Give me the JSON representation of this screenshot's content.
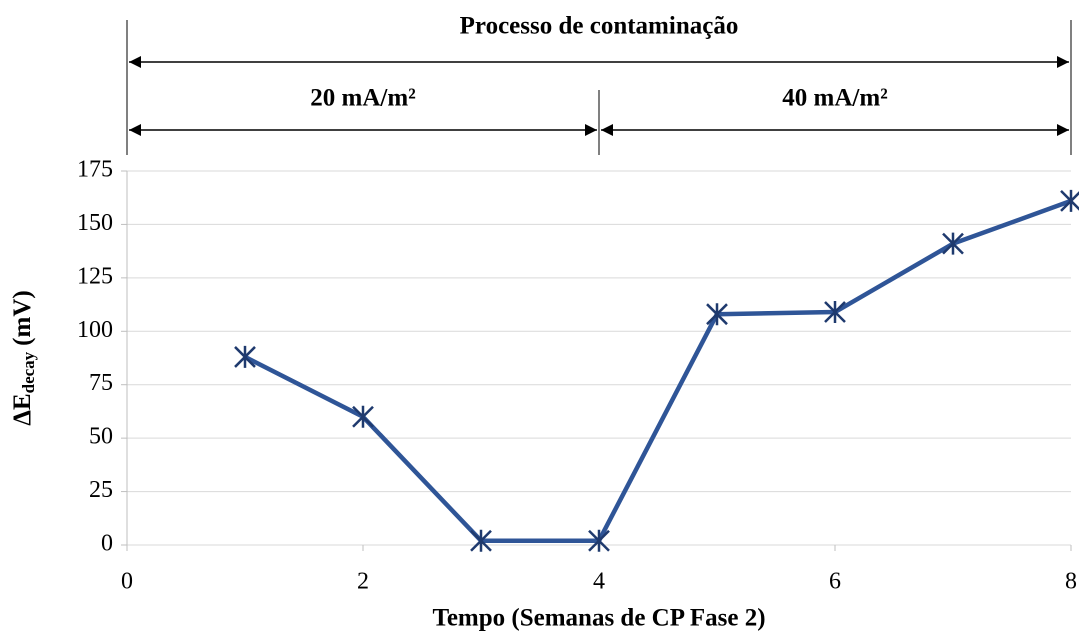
{
  "chart_data": {
    "type": "line",
    "x_label": "Tempo (Semanas de CP Fase 2)",
    "y_label": {
      "main": "ΔE",
      "sub": "decay",
      "unit": "(mV)"
    },
    "x": [
      1,
      2,
      3,
      4,
      5,
      6,
      7,
      8
    ],
    "series": [
      {
        "name": "ΔEdecay",
        "color": "#2f5597",
        "marker_color": "#1f3a6e",
        "values": [
          88,
          60,
          2,
          2,
          108,
          109,
          141,
          161
        ]
      }
    ],
    "xlim": [
      0,
      8
    ],
    "xticks": [
      0,
      2,
      4,
      6,
      8
    ],
    "ylim": [
      0,
      175
    ],
    "yticks": [
      0,
      25,
      50,
      75,
      100,
      125,
      150,
      175
    ],
    "grid": true,
    "annotations": [
      {
        "text": "Processo de contaminação",
        "x": [
          0,
          8
        ]
      },
      {
        "text": "20 mA/m²",
        "x": [
          0,
          4
        ]
      },
      {
        "text": "40 mA/m²",
        "x": [
          4,
          8
        ]
      }
    ]
  }
}
